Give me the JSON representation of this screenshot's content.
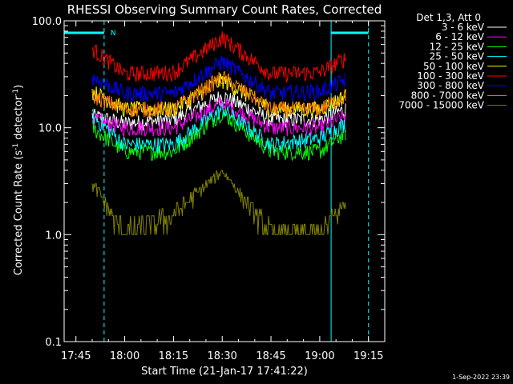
{
  "chart_data": {
    "type": "line",
    "title": "RHESSI Observing Summary Count Rates, Corrected",
    "xlabel": "Start Time (21-Jan-17 17:41:22)",
    "ylabel_main": "Corrected Count Rate (s",
    "ylabel_sup1": "-1",
    "ylabel_mid": " detector",
    "ylabel_sup2": "-1",
    "ylabel_end": ")",
    "yscale": "log",
    "ylim": [
      0.1,
      100
    ],
    "xlim": [
      "17:41:22",
      "19:20:00"
    ],
    "x_ticks": [
      "17:45",
      "18:00",
      "18:15",
      "18:30",
      "18:45",
      "19:00",
      "19:15"
    ],
    "y_ticks": [
      "0.1",
      "1.0",
      "10.0",
      "100.0"
    ],
    "legend_header": "Det 1,3, Att 0",
    "legend_position": "top-right",
    "timestamp": "1-Sep-2022 23:39",
    "night_flag": "N",
    "series": [
      {
        "name": "3 - 6 keV",
        "color": "#ffffff",
        "x": [
          "17:50",
          "18:00",
          "18:15",
          "18:30",
          "18:45",
          "19:00",
          "19:08"
        ],
        "values": [
          13,
          11,
          12,
          20,
          12,
          12,
          15
        ]
      },
      {
        "name": "6 - 12 keV",
        "color": "#ff00ff",
        "x": [
          "17:50",
          "18:00",
          "18:15",
          "18:30",
          "18:45",
          "19:00",
          "19:08"
        ],
        "values": [
          12,
          10,
          10,
          17,
          10,
          10,
          13
        ]
      },
      {
        "name": "12 - 25 keV",
        "color": "#00ff00",
        "x": [
          "17:50",
          "18:00",
          "18:15",
          "18:30",
          "18:45",
          "19:00",
          "19:08"
        ],
        "values": [
          10,
          6,
          6,
          14,
          6,
          6,
          9
        ]
      },
      {
        "name": "25 - 50 keV",
        "color": "#00ffff",
        "x": [
          "17:50",
          "18:00",
          "18:15",
          "18:30",
          "18:45",
          "19:00",
          "19:08"
        ],
        "values": [
          13,
          7,
          7,
          15,
          7,
          8,
          11
        ]
      },
      {
        "name": "50 - 100 keV",
        "color": "#ffff00",
        "x": [
          "17:50",
          "18:00",
          "18:15",
          "18:30",
          "18:45",
          "19:00",
          "19:08"
        ],
        "values": [
          22,
          15,
          15,
          28,
          15,
          15,
          20
        ]
      },
      {
        "name": "100 - 300 keV",
        "color": "#ff0000",
        "x": [
          "17:50",
          "18:00",
          "18:15",
          "18:30",
          "18:45",
          "19:00",
          "19:08"
        ],
        "values": [
          55,
          32,
          33,
          70,
          32,
          33,
          45
        ]
      },
      {
        "name": "300 - 800 keV",
        "color": "#0000ff",
        "x": [
          "17:50",
          "18:00",
          "18:15",
          "18:30",
          "18:45",
          "19:00",
          "19:08"
        ],
        "values": [
          30,
          21,
          21,
          42,
          21,
          22,
          28
        ]
      },
      {
        "name": "800 - 7000 keV",
        "color": "#ff8000",
        "x": [
          "17:50",
          "18:00",
          "18:15",
          "18:30",
          "18:45",
          "19:00",
          "19:08"
        ],
        "values": [
          20,
          15,
          15,
          30,
          15,
          15,
          20
        ]
      },
      {
        "name": "7000 - 15000 keV",
        "color": "#808000",
        "x": [
          "17:50",
          "18:00",
          "18:15",
          "18:30",
          "18:45",
          "19:00",
          "19:08"
        ],
        "values": [
          3.0,
          1.0,
          1.5,
          4.0,
          1.0,
          1.0,
          2.0
        ]
      }
    ],
    "vertical_markers": [
      {
        "time": "17:41:22",
        "style": "solid",
        "color": "#00ffff"
      },
      {
        "time": "17:53:40",
        "style": "dashed",
        "color": "#00ffff"
      },
      {
        "time": "19:03:30",
        "style": "solid",
        "color": "#00ffff"
      },
      {
        "time": "19:15:00",
        "style": "dashed",
        "color": "#00ffff"
      }
    ],
    "flag_bars": [
      {
        "start": "17:41:22",
        "end": "17:53:40",
        "color": "#00ffff"
      },
      {
        "start": "19:03:30",
        "end": "19:15:00",
        "color": "#00ffff"
      }
    ]
  }
}
